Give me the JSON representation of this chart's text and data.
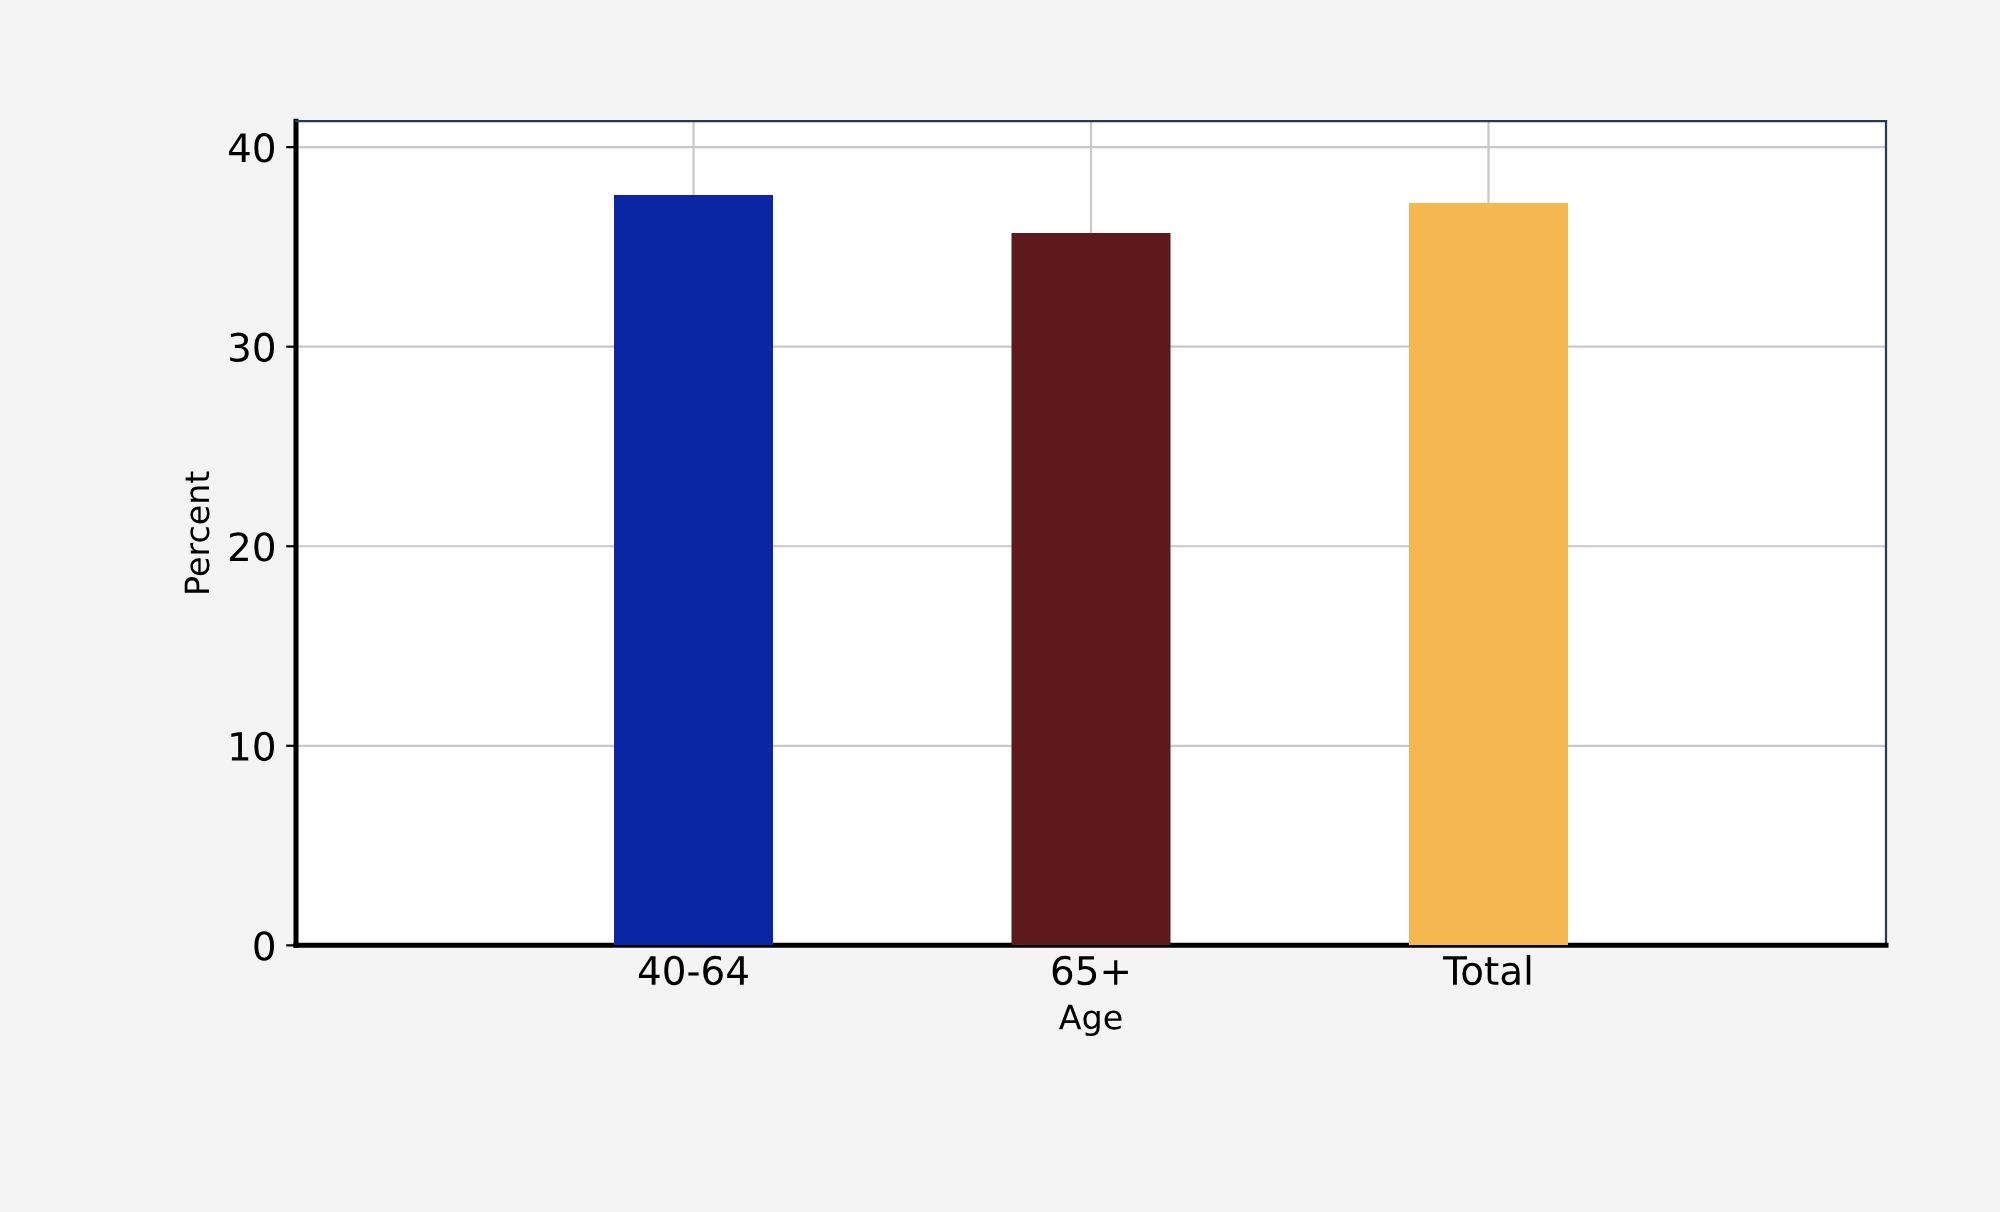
{
  "chart_data": {
    "type": "bar",
    "xlabel": "Age",
    "ylabel": "Percent",
    "categories": [
      "40-64",
      "65+",
      "Total"
    ],
    "values": [
      37.6,
      35.7,
      37.2
    ],
    "colors": [
      "#0a26a3",
      "#5e1a1a",
      "#f5b851"
    ],
    "ylim": [
      0,
      41.3
    ],
    "yticks": [
      0,
      10,
      20,
      30,
      40
    ],
    "grid": true
  }
}
